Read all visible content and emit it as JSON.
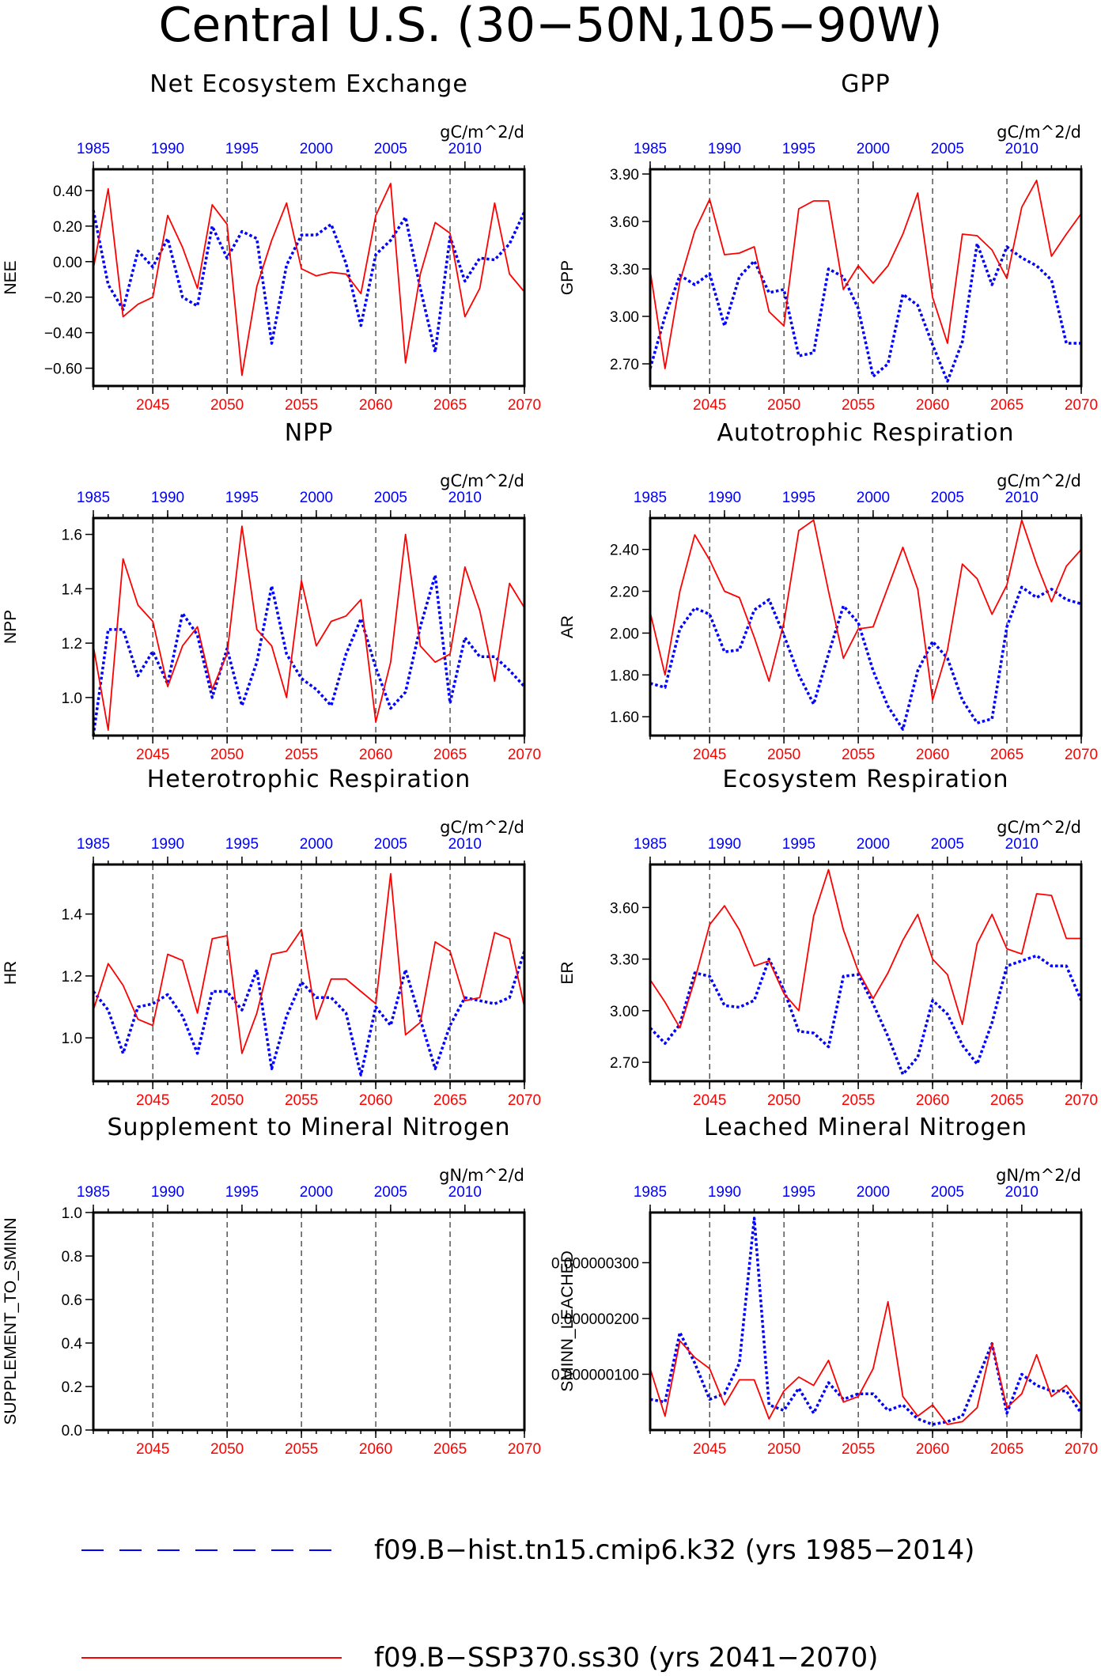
{
  "title": "Central U.S. (30−50N,105−90W)",
  "colors": {
    "hist": "#0000ff",
    "ssp": "#ff0000",
    "axis": "#000000"
  },
  "legend": [
    {
      "label": "f09.B−hist.tn15.cmip6.k32 (yrs 1985−2014)",
      "color": "#0000ff",
      "style": "dashed"
    },
    {
      "label": "f09.B−SSP370.ss30 (yrs 2041−2070)",
      "color": "#ff0000",
      "style": "solid"
    }
  ],
  "chart_data": [
    {
      "type": "line",
      "title": "Net Ecosystem Exchange",
      "units": "gC/m^2/d",
      "ylabel": "NEE",
      "ylim": [
        -0.7,
        0.52
      ],
      "yticks": [
        0.4,
        0.2,
        0.0,
        -0.2,
        -0.4,
        -0.6
      ],
      "ytick_labels": [
        "0.40",
        "0.20",
        "0.00",
        "−0.20",
        "−0.40",
        "−0.60"
      ],
      "x_top": {
        "ticks": [
          1985,
          1990,
          1995,
          2000,
          2005,
          2010
        ],
        "range": [
          1985,
          2014
        ]
      },
      "x_bottom": {
        "ticks": [
          2045,
          2050,
          2055,
          2060,
          2065,
          2070
        ],
        "range": [
          2041,
          2070
        ]
      },
      "series": [
        {
          "key": "hist",
          "values": [
            0.29,
            -0.13,
            -0.27,
            0.06,
            -0.03,
            0.13,
            -0.2,
            -0.25,
            0.2,
            0.02,
            0.17,
            0.13,
            -0.46,
            -0.02,
            0.15,
            0.15,
            0.21,
            -0.01,
            -0.36,
            0.04,
            0.12,
            0.25,
            -0.15,
            -0.51,
            0.14,
            -0.11,
            0.02,
            0.01,
            0.1,
            0.28
          ]
        },
        {
          "key": "ssp",
          "values": [
            -0.04,
            0.41,
            -0.31,
            -0.24,
            -0.2,
            0.26,
            0.08,
            -0.15,
            0.32,
            0.21,
            -0.64,
            -0.14,
            0.12,
            0.33,
            -0.04,
            -0.08,
            -0.06,
            -0.07,
            -0.18,
            0.26,
            0.44,
            -0.57,
            -0.07,
            0.22,
            0.16,
            -0.31,
            -0.15,
            0.33,
            -0.07,
            -0.17
          ]
        }
      ]
    },
    {
      "type": "line",
      "title": "GPP",
      "units": "gC/m^2/d",
      "ylabel": "GPP",
      "ylim": [
        2.56,
        3.93
      ],
      "yticks": [
        3.9,
        3.6,
        3.3,
        3.0,
        2.7
      ],
      "ytick_labels": [
        "3.90",
        "3.60",
        "3.30",
        "3.00",
        "2.70"
      ],
      "x_top": {
        "ticks": [
          1985,
          1990,
          1995,
          2000,
          2005,
          2010
        ],
        "range": [
          1985,
          2014
        ]
      },
      "x_bottom": {
        "ticks": [
          2045,
          2050,
          2055,
          2060,
          2065,
          2070
        ],
        "range": [
          2041,
          2070
        ]
      },
      "series": [
        {
          "key": "hist",
          "values": [
            2.67,
            3.0,
            3.26,
            3.2,
            3.27,
            2.94,
            3.25,
            3.35,
            3.15,
            3.17,
            2.75,
            2.77,
            3.3,
            3.25,
            3.05,
            2.62,
            2.7,
            3.14,
            3.07,
            2.82,
            2.59,
            2.84,
            3.46,
            3.2,
            3.44,
            3.37,
            3.32,
            3.23,
            2.83,
            2.83
          ]
        },
        {
          "key": "ssp",
          "values": [
            3.29,
            2.67,
            3.22,
            3.54,
            3.74,
            3.39,
            3.4,
            3.44,
            3.03,
            2.94,
            3.68,
            3.73,
            3.73,
            3.17,
            3.32,
            3.21,
            3.32,
            3.52,
            3.78,
            3.12,
            2.83,
            3.52,
            3.51,
            3.42,
            3.24,
            3.69,
            3.86,
            3.38,
            3.52,
            3.65
          ]
        }
      ]
    },
    {
      "type": "line",
      "title": "NPP",
      "units": "gC/m^2/d",
      "ylabel": "NPP",
      "ylim": [
        0.86,
        1.66
      ],
      "yticks": [
        1.6,
        1.4,
        1.2,
        1.0
      ],
      "ytick_labels": [
        "1.6",
        "1.4",
        "1.2",
        "1.0"
      ],
      "x_top": {
        "ticks": [
          1985,
          1990,
          1995,
          2000,
          2005,
          2010
        ],
        "range": [
          1985,
          2014
        ]
      },
      "x_bottom": {
        "ticks": [
          2045,
          2050,
          2055,
          2060,
          2065,
          2070
        ],
        "range": [
          2041,
          2070
        ]
      },
      "series": [
        {
          "key": "hist",
          "values": [
            0.86,
            1.25,
            1.25,
            1.08,
            1.17,
            1.05,
            1.31,
            1.23,
            1.0,
            1.18,
            0.97,
            1.13,
            1.41,
            1.16,
            1.07,
            1.03,
            0.97,
            1.16,
            1.29,
            1.11,
            0.96,
            1.02,
            1.26,
            1.45,
            0.98,
            1.22,
            1.15,
            1.15,
            1.1,
            1.04
          ]
        },
        {
          "key": "ssp",
          "values": [
            1.19,
            0.88,
            1.51,
            1.34,
            1.28,
            1.04,
            1.19,
            1.26,
            1.03,
            1.16,
            1.63,
            1.25,
            1.19,
            1.0,
            1.43,
            1.19,
            1.28,
            1.3,
            1.36,
            0.91,
            1.13,
            1.6,
            1.19,
            1.13,
            1.16,
            1.48,
            1.32,
            1.06,
            1.42,
            1.33
          ]
        }
      ]
    },
    {
      "type": "line",
      "title": "Autotrophic Respiration",
      "units": "gC/m^2/d",
      "ylabel": "AR",
      "ylim": [
        1.51,
        2.55
      ],
      "yticks": [
        2.4,
        2.2,
        2.0,
        1.8,
        1.6
      ],
      "ytick_labels": [
        "2.40",
        "2.20",
        "2.00",
        "1.80",
        "1.60"
      ],
      "x_top": {
        "ticks": [
          1985,
          1990,
          1995,
          2000,
          2005,
          2010
        ],
        "range": [
          1985,
          2014
        ]
      },
      "x_bottom": {
        "ticks": [
          2045,
          2050,
          2055,
          2060,
          2065,
          2070
        ],
        "range": [
          2041,
          2070
        ]
      },
      "series": [
        {
          "key": "hist",
          "values": [
            1.76,
            1.74,
            2.02,
            2.12,
            2.09,
            1.91,
            1.92,
            2.11,
            2.16,
            1.99,
            1.8,
            1.66,
            1.9,
            2.13,
            2.05,
            1.82,
            1.65,
            1.54,
            1.82,
            1.96,
            1.88,
            1.68,
            1.57,
            1.59,
            2.03,
            2.22,
            2.17,
            2.21,
            2.16,
            2.14
          ]
        },
        {
          "key": "ssp",
          "values": [
            2.1,
            1.8,
            2.2,
            2.47,
            2.35,
            2.2,
            2.17,
            1.98,
            1.77,
            2.05,
            2.49,
            2.54,
            2.2,
            1.88,
            2.02,
            2.03,
            2.22,
            2.41,
            2.21,
            1.68,
            1.92,
            2.33,
            2.26,
            2.09,
            2.23,
            2.54,
            2.33,
            2.15,
            2.32,
            2.4
          ]
        }
      ]
    },
    {
      "type": "line",
      "title": "Heterotrophic Respiration",
      "units": "gC/m^2/d",
      "ylabel": "HR",
      "ylim": [
        0.86,
        1.56
      ],
      "yticks": [
        1.4,
        1.2,
        1.0
      ],
      "ytick_labels": [
        "1.4",
        "1.2",
        "1.0"
      ],
      "x_top": {
        "ticks": [
          1985,
          1990,
          1995,
          2000,
          2005,
          2010
        ],
        "range": [
          1985,
          2014
        ]
      },
      "x_bottom": {
        "ticks": [
          2045,
          2050,
          2055,
          2060,
          2065,
          2070
        ],
        "range": [
          2041,
          2070
        ]
      },
      "series": [
        {
          "key": "hist",
          "values": [
            1.15,
            1.09,
            0.95,
            1.1,
            1.11,
            1.14,
            1.07,
            0.95,
            1.15,
            1.15,
            1.09,
            1.22,
            0.9,
            1.07,
            1.18,
            1.13,
            1.13,
            1.08,
            0.88,
            1.1,
            1.04,
            1.22,
            1.06,
            0.9,
            1.04,
            1.13,
            1.12,
            1.11,
            1.13,
            1.28
          ]
        },
        {
          "key": "ssp",
          "values": [
            1.09,
            1.24,
            1.17,
            1.06,
            1.04,
            1.27,
            1.25,
            1.08,
            1.32,
            1.33,
            0.95,
            1.08,
            1.27,
            1.28,
            1.35,
            1.06,
            1.19,
            1.19,
            1.15,
            1.11,
            1.53,
            1.01,
            1.05,
            1.31,
            1.28,
            1.12,
            1.13,
            1.34,
            1.32,
            1.1
          ]
        }
      ]
    },
    {
      "type": "line",
      "title": "Ecosystem Respiration",
      "units": "gC/m^2/d",
      "ylabel": "ER",
      "ylim": [
        2.59,
        3.85
      ],
      "yticks": [
        3.6,
        3.3,
        3.0,
        2.7
      ],
      "ytick_labels": [
        "3.60",
        "3.30",
        "3.00",
        "2.70"
      ],
      "x_top": {
        "ticks": [
          1985,
          1990,
          1995,
          2000,
          2005,
          2010
        ],
        "range": [
          1985,
          2014
        ]
      },
      "x_bottom": {
        "ticks": [
          2045,
          2050,
          2055,
          2060,
          2065,
          2070
        ],
        "range": [
          2041,
          2070
        ]
      },
      "series": [
        {
          "key": "hist",
          "values": [
            2.9,
            2.81,
            2.92,
            3.22,
            3.2,
            3.03,
            3.02,
            3.06,
            3.3,
            3.12,
            2.88,
            2.87,
            2.79,
            3.2,
            3.21,
            3.04,
            2.85,
            2.63,
            2.73,
            3.06,
            2.98,
            2.8,
            2.69,
            2.93,
            3.26,
            3.29,
            3.32,
            3.26,
            3.26,
            3.06
          ]
        },
        {
          "key": "ssp",
          "values": [
            3.18,
            3.05,
            2.9,
            3.18,
            3.5,
            3.61,
            3.47,
            3.26,
            3.29,
            3.1,
            3.0,
            3.55,
            3.82,
            3.47,
            3.23,
            3.07,
            3.22,
            3.41,
            3.56,
            3.3,
            3.21,
            2.92,
            3.39,
            3.56,
            3.36,
            3.33,
            3.68,
            3.67,
            3.42,
            3.42
          ]
        }
      ]
    },
    {
      "type": "line",
      "title": "Supplement to Mineral Nitrogen",
      "units": "gN/m^2/d",
      "ylabel": "SUPPLEMENT_TO_SMINN",
      "ylim": [
        0,
        1.0
      ],
      "yticks": [
        1.0,
        0.8,
        0.6,
        0.4,
        0.2,
        0.0
      ],
      "ytick_labels": [
        "1.0",
        "0.8",
        "0.6",
        "0.4",
        "0.2",
        "0.0"
      ],
      "x_top": {
        "ticks": [
          1985,
          1990,
          1995,
          2000,
          2005,
          2010
        ],
        "range": [
          1985,
          2014
        ]
      },
      "x_bottom": {
        "ticks": [
          2045,
          2050,
          2055,
          2060,
          2065,
          2070
        ],
        "range": [
          2041,
          2070
        ]
      },
      "series": []
    },
    {
      "type": "line",
      "title": "Leached Mineral Nitrogen",
      "units": "gN/m^2/d",
      "ylabel": "SMINN_LEACHED",
      "ylim": [
        0,
        3.9e-07
      ],
      "yticks": [
        3e-07,
        2e-07,
        1e-07
      ],
      "ytick_labels": [
        "0.000000300",
        "0.000000200",
        "0.000000100"
      ],
      "x_top": {
        "ticks": [
          1985,
          1990,
          1995,
          2000,
          2005,
          2010
        ],
        "range": [
          1985,
          2014
        ]
      },
      "x_bottom": {
        "ticks": [
          2045,
          2050,
          2055,
          2060,
          2065,
          2070
        ],
        "range": [
          2041,
          2070
        ]
      },
      "series": [
        {
          "key": "hist",
          "values": [
            5.5e-08,
            5e-08,
            1.75e-07,
            1.2e-07,
            5.5e-08,
            6.5e-08,
            1.2e-07,
            3.8e-07,
            4.5e-08,
            3.5e-08,
            7.5e-08,
            3e-08,
            8.5e-08,
            5.5e-08,
            6.5e-08,
            6.5e-08,
            3.5e-08,
            4.5e-08,
            2e-08,
            1e-08,
            1.5e-08,
            2.5e-08,
            9e-08,
            1.55e-07,
            3e-08,
            1e-07,
            8e-08,
            7e-08,
            7e-08,
            3e-08
          ]
        },
        {
          "key": "ssp",
          "values": [
            1.1e-07,
            2.5e-08,
            1.6e-07,
            1.3e-07,
            1.1e-07,
            4.5e-08,
            9e-08,
            9e-08,
            2e-08,
            7e-08,
            9.5e-08,
            8e-08,
            1.25e-07,
            5e-08,
            6e-08,
            1.1e-07,
            2.3e-07,
            6e-08,
            2.5e-08,
            4.5e-08,
            1e-08,
            1.5e-08,
            4e-08,
            1.55e-07,
            4e-08,
            6.5e-08,
            1.35e-07,
            6e-08,
            8e-08,
            4.5e-08
          ]
        }
      ]
    }
  ]
}
